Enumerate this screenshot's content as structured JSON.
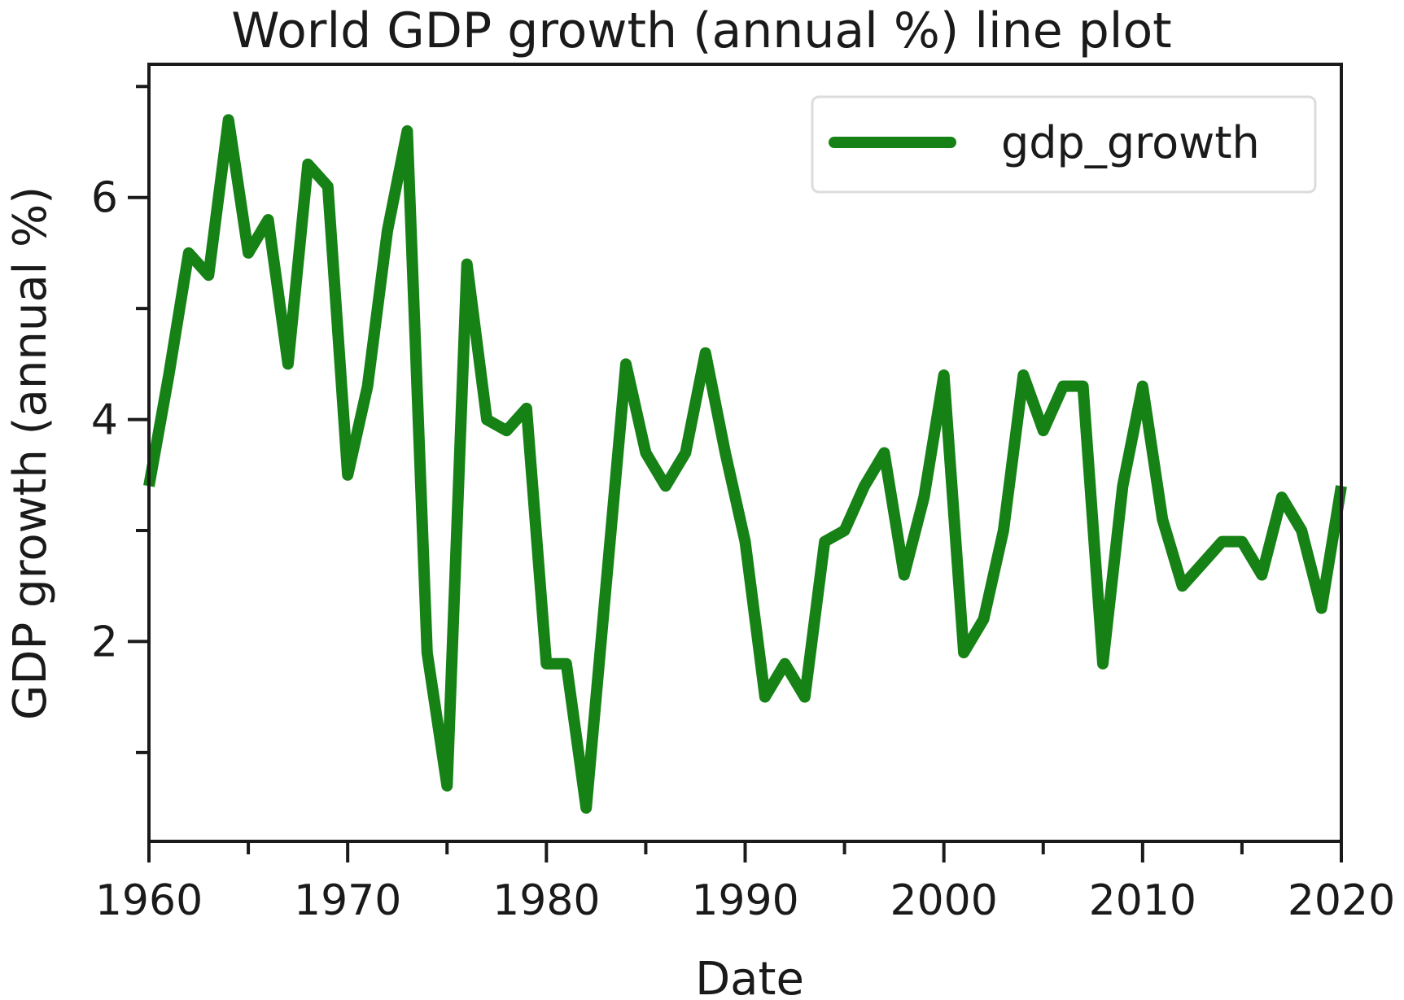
{
  "chart_data": {
    "type": "line",
    "title": "World GDP growth (annual %) line plot",
    "xlabel": "Date",
    "ylabel": "GDP growth (annual %)",
    "xlim": [
      1960,
      2020
    ],
    "ylim": [
      0.2,
      7.2
    ],
    "x_ticks": [
      "1960",
      "1970",
      "1980",
      "1990",
      "2000",
      "2010",
      "2020"
    ],
    "y_ticks": [
      "2",
      "4",
      "6"
    ],
    "grid": false,
    "legend_position": "top-right",
    "series": [
      {
        "name": "gdp_growth",
        "color": "#168216",
        "x": [
          1960,
          1961,
          1962,
          1963,
          1964,
          1965,
          1966,
          1967,
          1968,
          1969,
          1970,
          1971,
          1972,
          1973,
          1974,
          1975,
          1976,
          1977,
          1978,
          1979,
          1980,
          1981,
          1982,
          1983,
          1984,
          1985,
          1986,
          1987,
          1988,
          1989,
          1990,
          1991,
          1992,
          1993,
          1994,
          1995,
          1996,
          1997,
          1998,
          1999,
          2000,
          2001,
          2002,
          2003,
          2004,
          2005,
          2006,
          2007,
          2008,
          2009,
          2010,
          2011,
          2012,
          2013,
          2014,
          2015,
          2016,
          2017,
          2018,
          2019,
          2020
        ],
        "values": [
          3.4,
          4.4,
          5.5,
          5.3,
          6.7,
          5.5,
          5.8,
          4.5,
          6.3,
          6.1,
          3.5,
          4.3,
          5.7,
          6.6,
          1.9,
          0.7,
          5.4,
          4.0,
          3.9,
          4.1,
          1.8,
          1.8,
          0.5,
          2.5,
          4.5,
          3.7,
          3.4,
          3.7,
          4.6,
          3.7,
          2.9,
          1.5,
          1.8,
          1.5,
          2.9,
          3.0,
          3.4,
          3.7,
          2.6,
          3.3,
          4.4,
          1.9,
          2.2,
          3.0,
          4.4,
          3.9,
          4.3,
          4.3,
          1.8,
          3.4,
          4.3,
          3.1,
          2.5,
          2.7,
          2.9,
          2.9,
          2.6,
          3.3,
          3.0,
          2.3,
          3.4
        ]
      }
    ]
  }
}
